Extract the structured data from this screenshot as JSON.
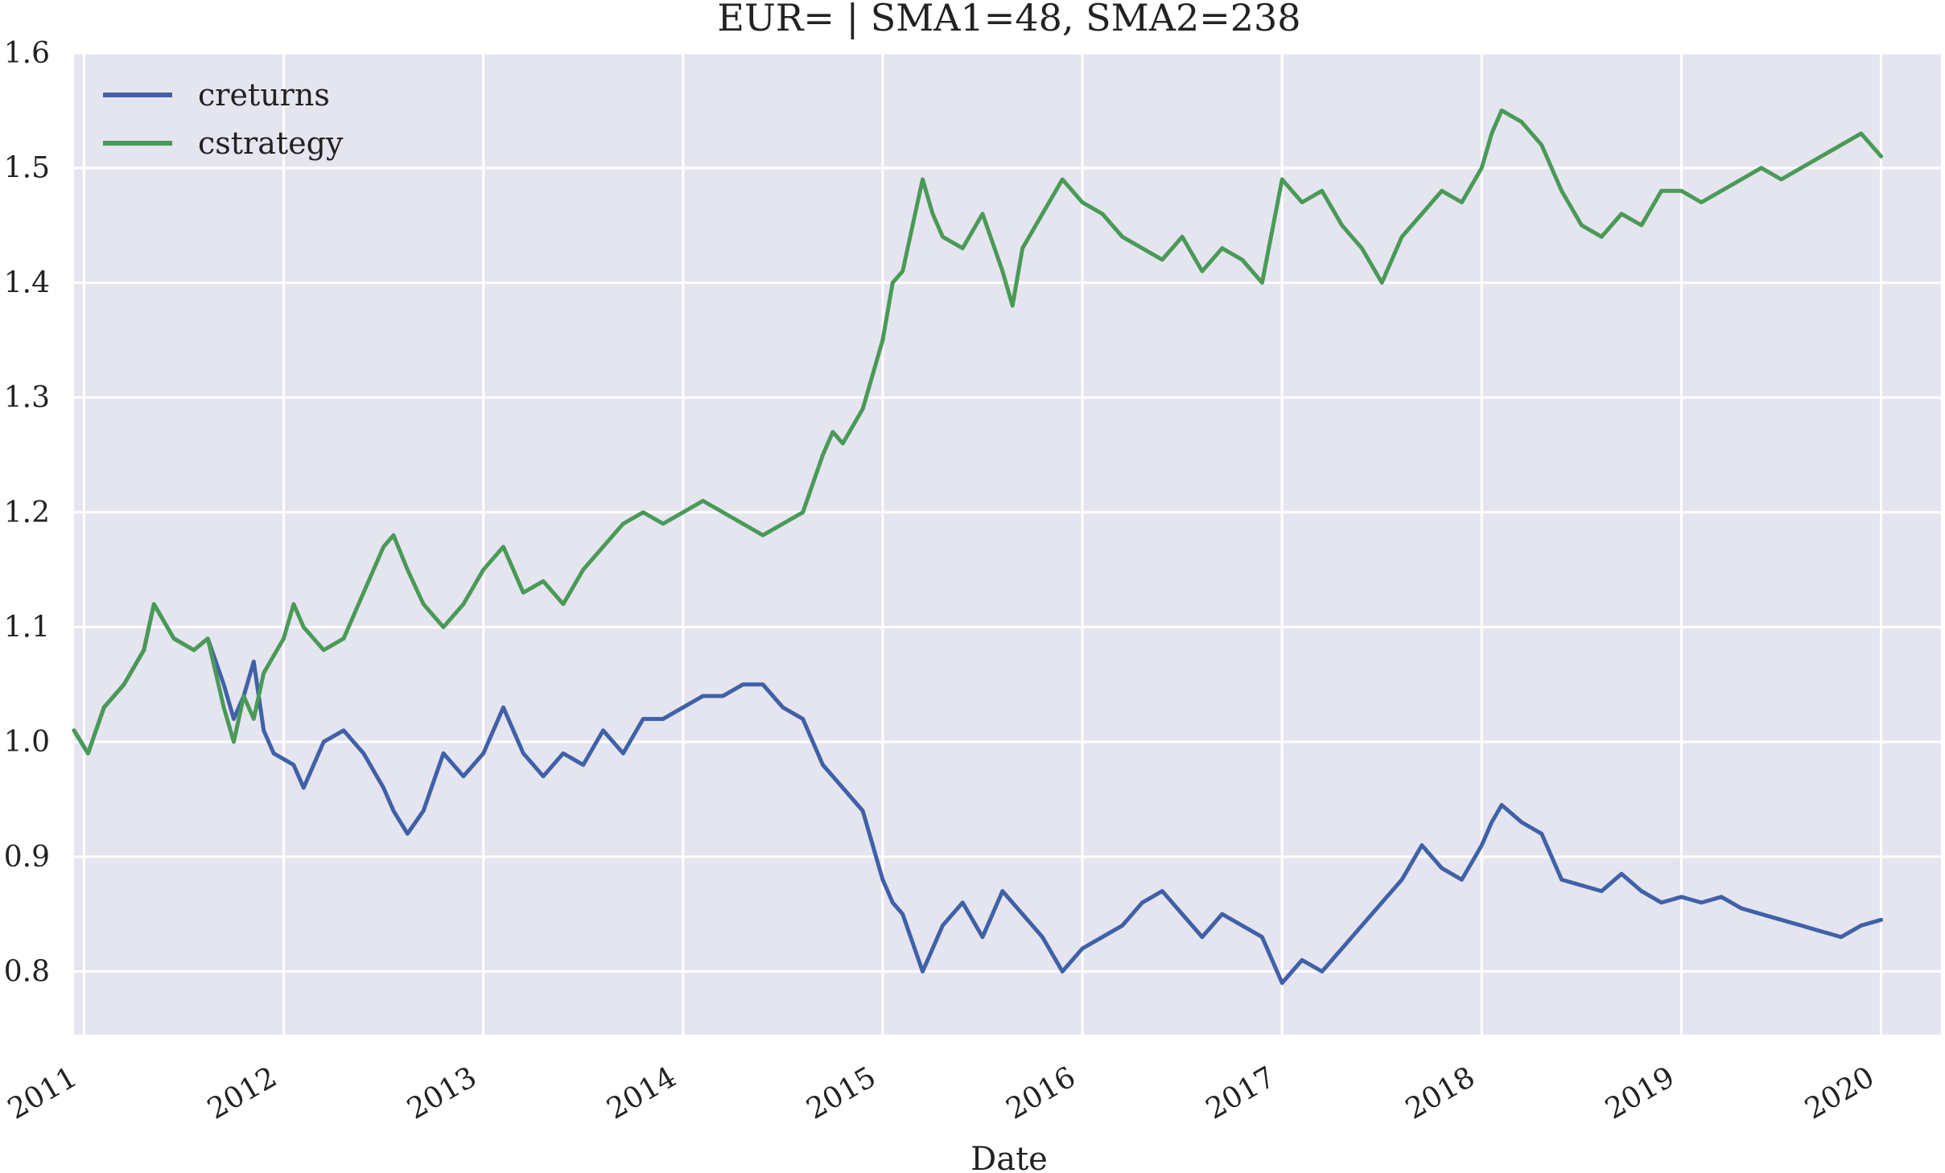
{
  "chart_data": {
    "type": "line",
    "title": "EUR= | SMA1=48, SMA2=238",
    "xlabel": "Date",
    "ylabel": "",
    "xlim": [
      2010.95,
      2020.3
    ],
    "ylim": [
      0.745,
      1.6
    ],
    "x_ticks": [
      2011,
      2012,
      2013,
      2014,
      2015,
      2016,
      2017,
      2018,
      2019,
      2020
    ],
    "x_tick_labels": [
      "2011",
      "2012",
      "2013",
      "2014",
      "2015",
      "2016",
      "2017",
      "2018",
      "2019",
      "2020"
    ],
    "y_ticks": [
      0.8,
      0.9,
      1.0,
      1.1,
      1.2,
      1.3,
      1.4,
      1.5,
      1.6
    ],
    "y_tick_labels": [
      "0.8",
      "0.9",
      "1.0",
      "1.1",
      "1.2",
      "1.3",
      "1.4",
      "1.5",
      "1.6"
    ],
    "grid": true,
    "legend_position": "top-left",
    "background_color": "#e5e5f0",
    "grid_color": "#ffffff",
    "series": [
      {
        "name": "creturns",
        "color": "#4061a8",
        "x": [
          2010.95,
          2011.02,
          2011.1,
          2011.2,
          2011.3,
          2011.35,
          2011.45,
          2011.55,
          2011.62,
          2011.7,
          2011.75,
          2011.8,
          2011.85,
          2011.9,
          2011.95,
          2012.05,
          2012.1,
          2012.2,
          2012.3,
          2012.4,
          2012.5,
          2012.55,
          2012.62,
          2012.7,
          2012.8,
          2012.9,
          2013.0,
          2013.1,
          2013.2,
          2013.3,
          2013.4,
          2013.5,
          2013.6,
          2013.7,
          2013.8,
          2013.9,
          2014.0,
          2014.1,
          2014.2,
          2014.3,
          2014.4,
          2014.5,
          2014.6,
          2014.7,
          2014.8,
          2014.9,
          2015.0,
          2015.05,
          2015.1,
          2015.2,
          2015.25,
          2015.3,
          2015.4,
          2015.5,
          2015.6,
          2015.7,
          2015.8,
          2015.9,
          2016.0,
          2016.1,
          2016.2,
          2016.3,
          2016.4,
          2016.5,
          2016.6,
          2016.7,
          2016.8,
          2016.9,
          2017.0,
          2017.1,
          2017.2,
          2017.3,
          2017.4,
          2017.5,
          2017.6,
          2017.7,
          2017.8,
          2017.9,
          2018.0,
          2018.05,
          2018.1,
          2018.2,
          2018.3,
          2018.4,
          2018.5,
          2018.6,
          2018.7,
          2018.8,
          2018.9,
          2019.0,
          2019.1,
          2019.2,
          2019.3,
          2019.4,
          2019.5,
          2019.6,
          2019.7,
          2019.8,
          2019.9,
          2020.0
        ],
        "values": [
          1.01,
          0.99,
          1.03,
          1.05,
          1.08,
          1.12,
          1.09,
          1.08,
          1.09,
          1.05,
          1.02,
          1.04,
          1.07,
          1.01,
          0.99,
          0.98,
          0.96,
          1.0,
          1.01,
          0.99,
          0.96,
          0.94,
          0.92,
          0.94,
          0.99,
          0.97,
          0.99,
          1.03,
          0.99,
          0.97,
          0.99,
          0.98,
          1.01,
          0.99,
          1.02,
          1.02,
          1.03,
          1.04,
          1.04,
          1.05,
          1.05,
          1.03,
          1.02,
          0.98,
          0.96,
          0.94,
          0.88,
          0.86,
          0.85,
          0.8,
          0.82,
          0.84,
          0.86,
          0.83,
          0.87,
          0.85,
          0.83,
          0.8,
          0.82,
          0.83,
          0.84,
          0.86,
          0.87,
          0.85,
          0.83,
          0.85,
          0.84,
          0.83,
          0.79,
          0.81,
          0.8,
          0.82,
          0.84,
          0.86,
          0.88,
          0.91,
          0.89,
          0.88,
          0.91,
          0.93,
          0.945,
          0.93,
          0.92,
          0.88,
          0.875,
          0.87,
          0.885,
          0.87,
          0.86,
          0.865,
          0.86,
          0.865,
          0.855,
          0.85,
          0.845,
          0.84,
          0.835,
          0.83,
          0.84,
          0.845
        ]
      },
      {
        "name": "cstrategy",
        "color": "#4a9a57",
        "x": [
          2010.95,
          2011.02,
          2011.1,
          2011.2,
          2011.3,
          2011.35,
          2011.45,
          2011.55,
          2011.62,
          2011.7,
          2011.75,
          2011.8,
          2011.85,
          2011.9,
          2012.0,
          2012.05,
          2012.1,
          2012.2,
          2012.3,
          2012.4,
          2012.5,
          2012.55,
          2012.62,
          2012.7,
          2012.8,
          2012.9,
          2013.0,
          2013.1,
          2013.2,
          2013.3,
          2013.4,
          2013.5,
          2013.6,
          2013.7,
          2013.8,
          2013.9,
          2014.0,
          2014.1,
          2014.2,
          2014.3,
          2014.4,
          2014.5,
          2014.6,
          2014.7,
          2014.75,
          2014.8,
          2014.9,
          2015.0,
          2015.05,
          2015.1,
          2015.15,
          2015.2,
          2015.25,
          2015.3,
          2015.4,
          2015.5,
          2015.6,
          2015.65,
          2015.7,
          2015.8,
          2015.9,
          2016.0,
          2016.1,
          2016.2,
          2016.3,
          2016.4,
          2016.5,
          2016.6,
          2016.7,
          2016.8,
          2016.9,
          2017.0,
          2017.1,
          2017.2,
          2017.3,
          2017.4,
          2017.5,
          2017.6,
          2017.7,
          2017.8,
          2017.9,
          2018.0,
          2018.05,
          2018.1,
          2018.2,
          2018.3,
          2018.4,
          2018.5,
          2018.6,
          2018.7,
          2018.8,
          2018.9,
          2019.0,
          2019.1,
          2019.2,
          2019.3,
          2019.4,
          2019.5,
          2019.6,
          2019.7,
          2019.8,
          2019.9,
          2020.0
        ],
        "values": [
          1.01,
          0.99,
          1.03,
          1.05,
          1.08,
          1.12,
          1.09,
          1.08,
          1.09,
          1.03,
          1.0,
          1.04,
          1.02,
          1.06,
          1.09,
          1.12,
          1.1,
          1.08,
          1.09,
          1.13,
          1.17,
          1.18,
          1.15,
          1.12,
          1.1,
          1.12,
          1.15,
          1.17,
          1.13,
          1.14,
          1.12,
          1.15,
          1.17,
          1.19,
          1.2,
          1.19,
          1.2,
          1.21,
          1.2,
          1.19,
          1.18,
          1.19,
          1.2,
          1.25,
          1.27,
          1.26,
          1.29,
          1.35,
          1.4,
          1.41,
          1.45,
          1.49,
          1.46,
          1.44,
          1.43,
          1.46,
          1.41,
          1.38,
          1.43,
          1.46,
          1.49,
          1.47,
          1.46,
          1.44,
          1.43,
          1.42,
          1.44,
          1.41,
          1.43,
          1.42,
          1.4,
          1.49,
          1.47,
          1.48,
          1.45,
          1.43,
          1.4,
          1.44,
          1.46,
          1.48,
          1.47,
          1.5,
          1.53,
          1.55,
          1.54,
          1.52,
          1.48,
          1.45,
          1.44,
          1.46,
          1.45,
          1.48,
          1.48,
          1.47,
          1.48,
          1.49,
          1.5,
          1.49,
          1.5,
          1.51,
          1.52,
          1.53,
          1.51
        ]
      }
    ]
  }
}
